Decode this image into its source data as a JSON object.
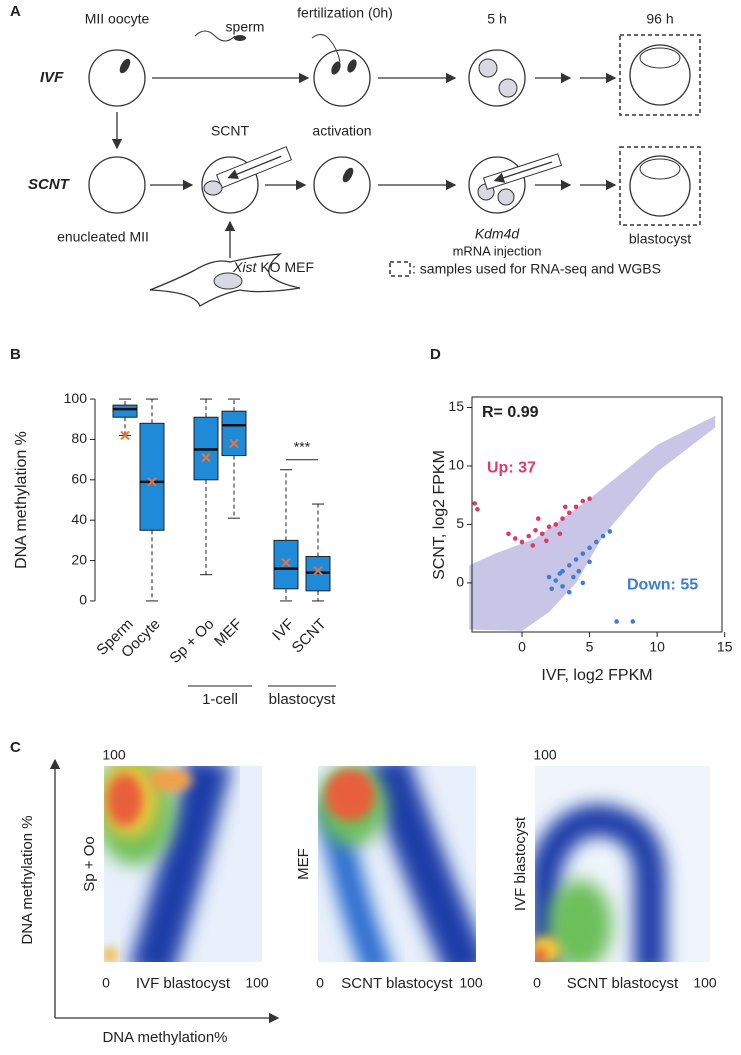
{
  "panel_a": {
    "label": "A",
    "ivf": "IVF",
    "scnt": "SCNT",
    "mii_oocyte": "MII oocyte",
    "sperm": "sperm",
    "fertilization": "fertilization (0h)",
    "five_h": "5 h",
    "ninety_six_h": "96 h",
    "scnt_step": "SCNT",
    "activation": "activation",
    "enucleated": "enucleated MII",
    "kdm4d": "Kdm4d",
    "mrna_injection": "mRNA injection",
    "blastocyst": "blastocyst",
    "xist": "Xist",
    "ko_mef": "KO MEF",
    "legend": ": samples used for RNA-seq and WGBS"
  },
  "panel_c": {
    "label": "C",
    "y_axis": "DNA methylation %",
    "x_axis": "DNA methylation%",
    "plots": [
      {
        "y_label": "Sp + Oo",
        "x_label": "IVF blastocyst",
        "y_max": "100",
        "origin": "0",
        "x_max": "100"
      },
      {
        "y_label": "MEF",
        "x_label": "SCNT blastocyst",
        "origin": "0",
        "x_max": "100"
      },
      {
        "y_label": "IVF blastocyst",
        "x_label": "SCNT blastocyst",
        "y_max": "100",
        "origin": "0",
        "x_max": "100"
      }
    ]
  },
  "chart_data": [
    {
      "type": "box",
      "panel": "B",
      "ylabel": "DNA methylation %",
      "categories": [
        "Sperm",
        "Oocyte",
        "Sp + Oo",
        "MEF",
        "IVF",
        "SCNT"
      ],
      "groups": [
        "1-cell",
        "blastocyst"
      ],
      "annotation": "***",
      "color": "#1f8ad8",
      "mean_color": "#e8743b",
      "whislo": [
        82,
        0,
        13,
        41,
        0,
        0
      ],
      "q1": [
        91,
        35,
        60,
        72,
        6,
        5
      ],
      "med": [
        95,
        59,
        75,
        87,
        16,
        14
      ],
      "q3": [
        97,
        88,
        91,
        94,
        30,
        22
      ],
      "whishi": [
        100,
        100,
        100,
        100,
        65,
        48
      ],
      "mean": [
        82,
        59,
        71,
        78,
        19,
        15
      ],
      "ylim": [
        -3.5,
        103.5
      ],
      "yticks": [
        0,
        20,
        40,
        60,
        80,
        100
      ]
    },
    {
      "type": "scatter",
      "panel": "D",
      "xlabel": "IVF, log2 FPKM",
      "ylabel": "SCNT, log2 FPKM",
      "annotation": "R= 0.99",
      "xlim": [
        -3.7,
        14.8
      ],
      "ylim": [
        -4.2,
        15.9
      ],
      "xticks": [
        0,
        5,
        10,
        15
      ],
      "yticks": [
        0,
        5,
        10,
        15
      ],
      "cloud_color": "#c9c5e6",
      "series": [
        {
          "name": "Up: 37",
          "color": "#e0386a",
          "x": [
            -3.5,
            -3.3,
            -1,
            -0.5,
            0,
            0.5,
            1,
            1.5,
            2,
            0.8,
            1.8,
            2.5,
            3,
            3.5,
            4,
            4.5,
            5,
            1.2,
            2.8,
            3.2
          ],
          "values": [
            6.8,
            6.3,
            4.2,
            3.8,
            3.5,
            4,
            4.5,
            4.2,
            4.8,
            3.2,
            3.6,
            5,
            5.5,
            6,
            6.5,
            7,
            7.2,
            5.5,
            4.2,
            6.5
          ]
        },
        {
          "name": "Down: 55",
          "color": "#3a7fd5",
          "x": [
            2,
            2.5,
            3,
            3.5,
            4,
            4.5,
            5,
            5.5,
            6,
            6.5,
            2.2,
            3,
            3.8,
            4.2,
            5,
            3.5,
            4.5,
            7,
            8.2,
            2.8
          ],
          "values": [
            0.5,
            0.2,
            1,
            1.5,
            2,
            2.5,
            3,
            3.5,
            4,
            4.4,
            -0.5,
            -0.3,
            0.5,
            1,
            1.8,
            -0.8,
            0,
            -3.3,
            -3.3,
            0.8
          ]
        }
      ]
    }
  ]
}
